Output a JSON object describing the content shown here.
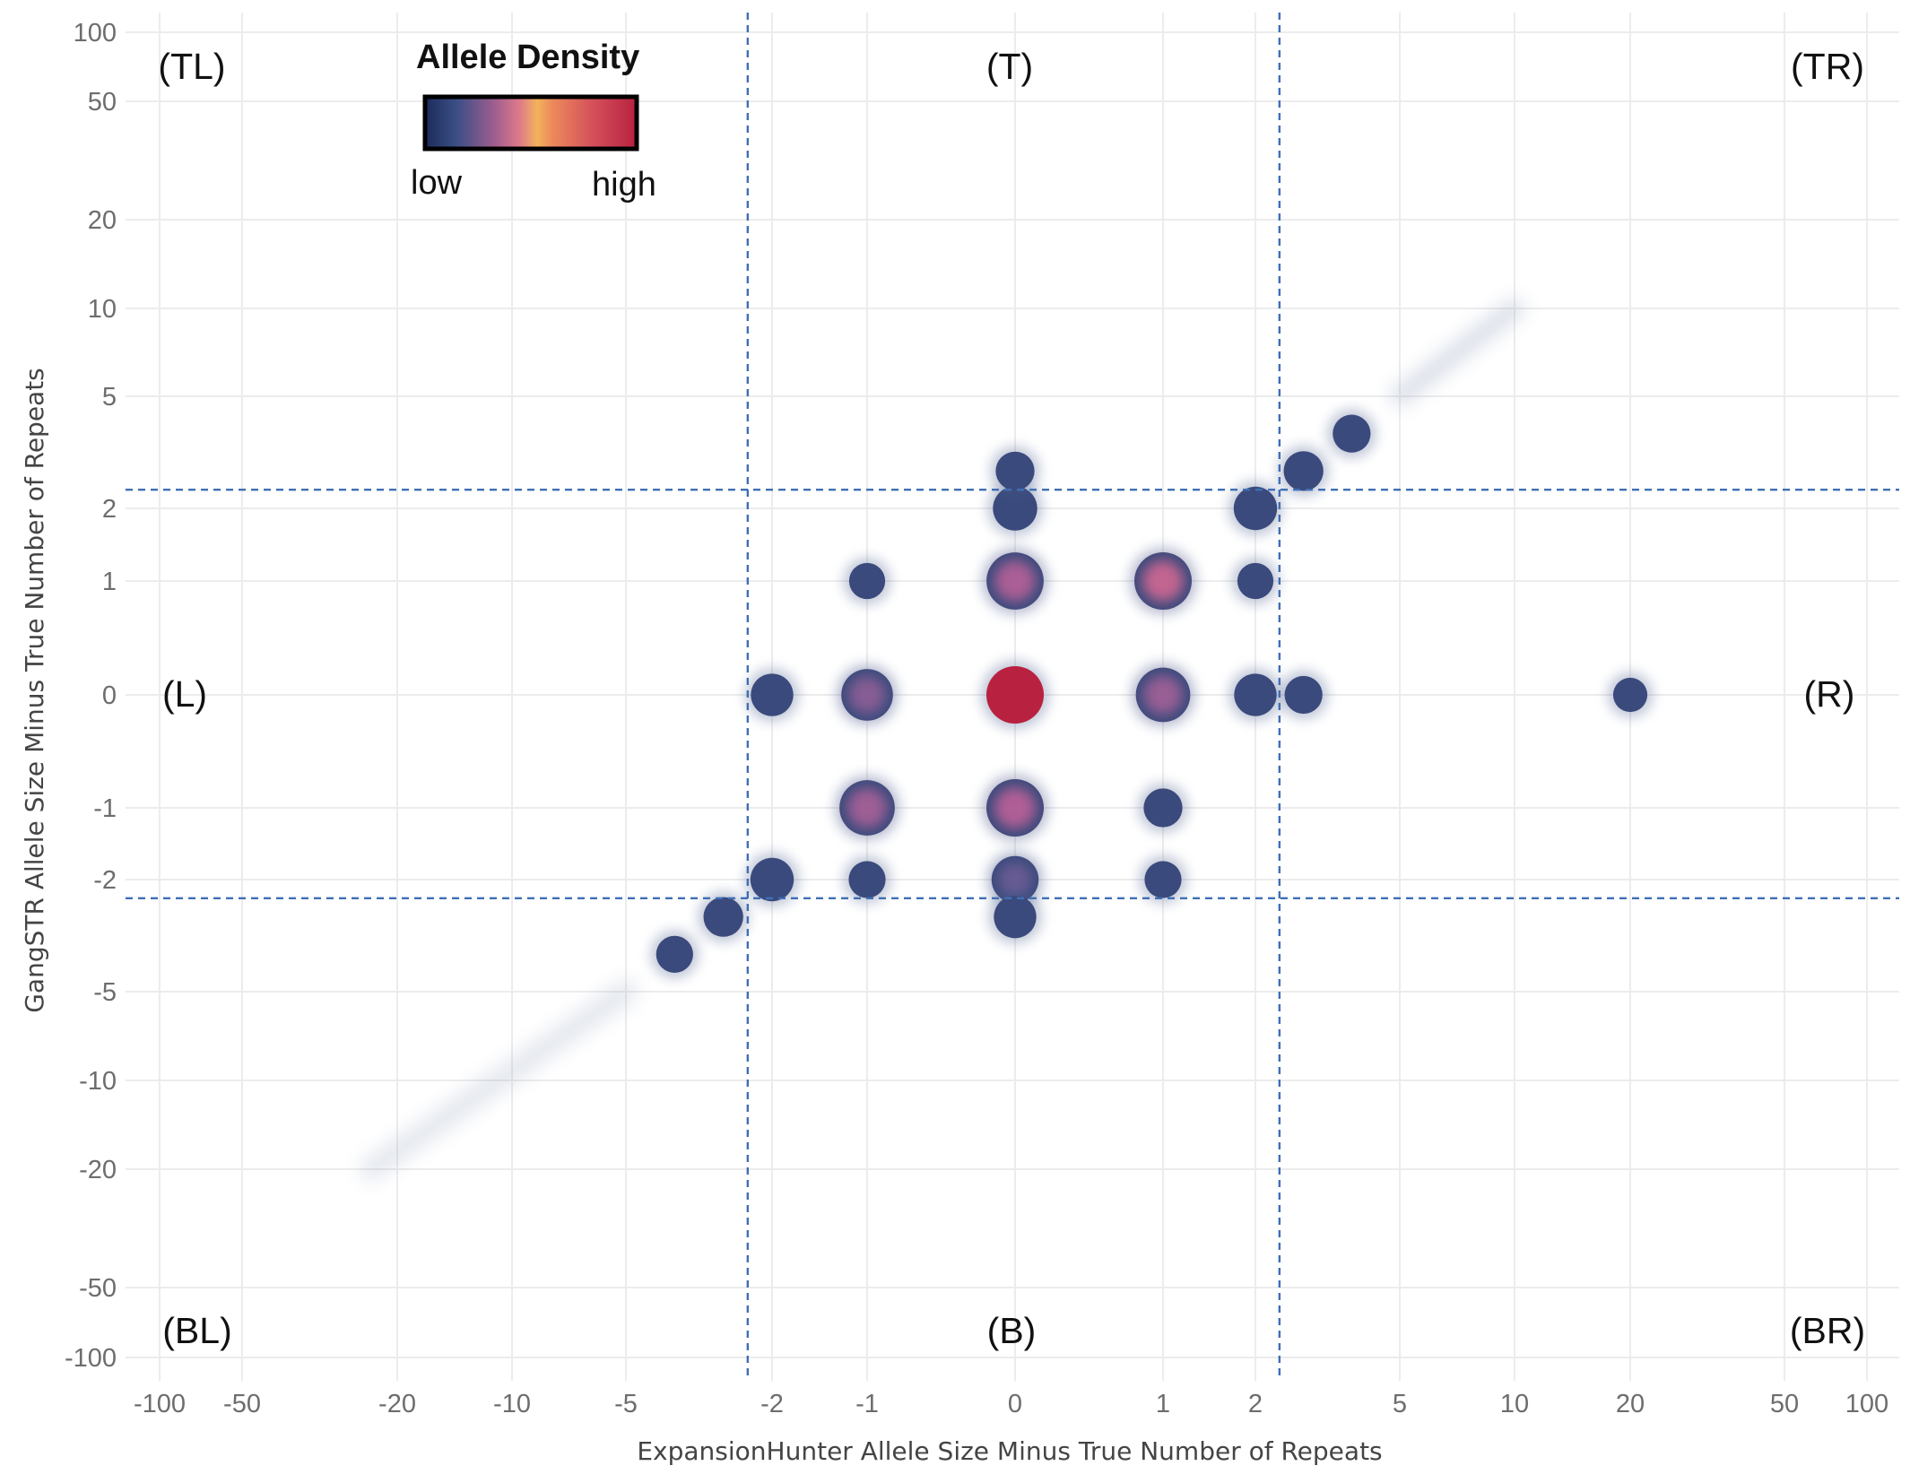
{
  "chart_data": {
    "type": "heatmap",
    "xlabel": "ExpansionHunter Allele Size Minus True Number of Repeats",
    "ylabel": "GangSTR Allele Size Minus True Number of Repeats",
    "x_ticks": [
      "-100",
      "-50",
      "-20",
      "-10",
      "-5",
      "-2",
      "-1",
      "0",
      "1",
      "2",
      "5",
      "10",
      "20",
      "50",
      "100"
    ],
    "y_ticks": [
      "100",
      "50",
      "20",
      "10",
      "5",
      "2",
      "1",
      "0",
      "-1",
      "-2",
      "-5",
      "-10",
      "-20",
      "-50",
      "-100"
    ],
    "x_range": [
      -100,
      100
    ],
    "y_range": [
      -100,
      100
    ],
    "grid": true,
    "legend": {
      "title": "Allele Density",
      "low_label": "low",
      "high_label": "high",
      "placement": "top-left",
      "colors": [
        "#1c2a5a",
        "#3b4f86",
        "#9a5c8f",
        "#e07b8a",
        "#f2b35a",
        "#ec8a5c",
        "#d34e5a",
        "#b8213f"
      ]
    },
    "quadrants": [
      {
        "label": "(TL)",
        "region": "top-left"
      },
      {
        "label": "(T)",
        "region": "top"
      },
      {
        "label": "(TR)",
        "region": "top-right"
      },
      {
        "label": "(L)",
        "region": "left"
      },
      {
        "label": "(R)",
        "region": "right"
      },
      {
        "label": "(BL)",
        "region": "bottom-left"
      },
      {
        "label": "(B)",
        "region": "bottom"
      },
      {
        "label": "(BR)",
        "region": "bottom-right"
      }
    ],
    "divider_lines": {
      "x": [
        -2.5,
        2.5
      ],
      "y": [
        2.5,
        -2.5
      ]
    },
    "density_points": [
      {
        "x": 0,
        "y": 0,
        "density": 1.0
      },
      {
        "x": 1,
        "y": 1,
        "density": 0.72
      },
      {
        "x": 0,
        "y": 1,
        "density": 0.62
      },
      {
        "x": 0,
        "y": -1,
        "density": 0.64
      },
      {
        "x": -1,
        "y": -1,
        "density": 0.58
      },
      {
        "x": 1,
        "y": 0,
        "density": 0.56
      },
      {
        "x": -1,
        "y": 0,
        "density": 0.5
      },
      {
        "x": 0,
        "y": -2,
        "density": 0.4
      },
      {
        "x": 0,
        "y": 2,
        "density": 0.34
      },
      {
        "x": -2,
        "y": -2,
        "density": 0.32
      },
      {
        "x": 2,
        "y": 2,
        "density": 0.32
      },
      {
        "x": -2,
        "y": 0,
        "density": 0.3
      },
      {
        "x": 2,
        "y": 0,
        "density": 0.3
      },
      {
        "x": 0,
        "y": -3,
        "density": 0.3
      },
      {
        "x": 0,
        "y": 3,
        "density": 0.22
      },
      {
        "x": 1,
        "y": -1,
        "density": 0.22
      },
      {
        "x": 1,
        "y": -2,
        "density": 0.18
      },
      {
        "x": -1,
        "y": 1,
        "density": 0.16
      },
      {
        "x": -1,
        "y": -2,
        "density": 0.18
      },
      {
        "x": 2,
        "y": 1,
        "density": 0.16
      },
      {
        "x": 3,
        "y": 3,
        "density": 0.24
      },
      {
        "x": 4,
        "y": 4,
        "density": 0.2
      },
      {
        "x": -3,
        "y": -3,
        "density": 0.24
      },
      {
        "x": -4,
        "y": -4,
        "density": 0.18
      },
      {
        "x": 3,
        "y": 0,
        "density": 0.2
      },
      {
        "x": 20,
        "y": 0,
        "density": 0.12
      }
    ]
  }
}
